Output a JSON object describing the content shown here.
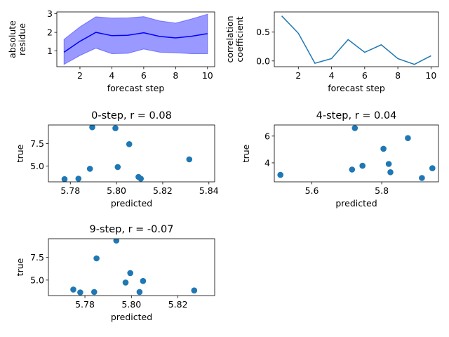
{
  "chart_data": [
    {
      "id": "residue",
      "type": "line",
      "xlabel": "forecast step",
      "ylabel": [
        "absolute",
        "residue"
      ],
      "xlim": [
        0.55,
        10.45
      ],
      "ylim": [
        0.15,
        3.1
      ],
      "xticks": [
        2,
        4,
        6,
        8,
        10
      ],
      "yticks": [
        1,
        2,
        3
      ],
      "x": [
        1,
        2,
        3,
        4,
        5,
        6,
        7,
        8,
        9,
        10
      ],
      "series": [
        {
          "values": [
            0.93,
            1.52,
            2.0,
            1.82,
            1.84,
            1.98,
            1.78,
            1.7,
            1.79,
            1.93
          ],
          "lower": [
            0.27,
            0.75,
            1.15,
            0.85,
            0.87,
            1.1,
            0.93,
            0.9,
            0.85,
            0.85
          ],
          "upper": [
            1.62,
            2.3,
            2.84,
            2.77,
            2.78,
            2.85,
            2.62,
            2.5,
            2.72,
            2.98
          ],
          "color": "#0000ff"
        }
      ]
    },
    {
      "id": "corr",
      "type": "line",
      "xlabel": "forecast step",
      "ylabel": [
        "correlation",
        "coefficient"
      ],
      "xlim": [
        0.55,
        10.45
      ],
      "ylim": [
        -0.1,
        0.85
      ],
      "xticks": [
        2,
        4,
        6,
        8,
        10
      ],
      "yticks": [
        0.0,
        0.5
      ],
      "ytickFormat": 1,
      "x": [
        1,
        2,
        3,
        4,
        5,
        6,
        7,
        8,
        9,
        10
      ],
      "series": [
        {
          "values": [
            0.78,
            0.48,
            -0.04,
            0.04,
            0.37,
            0.15,
            0.28,
            0.04,
            -0.06,
            0.09
          ],
          "color": "#1f77b4"
        }
      ]
    },
    {
      "id": "s0",
      "type": "scatter",
      "title": "0-step, r = 0.08",
      "xlabel": "predicted",
      "ylabel": "true",
      "xlim": [
        5.7705,
        5.8425
      ],
      "ylim": [
        3.25,
        9.58
      ],
      "xticks": [
        5.78,
        5.8,
        5.82,
        5.84
      ],
      "xtickFormat": 2,
      "yticks": [
        5.0,
        7.5
      ],
      "ytickFormat": 1,
      "color": "#1f77b4",
      "points": [
        [
          5.7895,
          9.33
        ],
        [
          5.7995,
          9.22
        ],
        [
          5.8055,
          7.45
        ],
        [
          5.7775,
          3.55
        ],
        [
          5.7835,
          3.6
        ],
        [
          5.7885,
          4.7
        ],
        [
          5.8005,
          4.9
        ],
        [
          5.8095,
          3.8
        ],
        [
          5.8105,
          3.6
        ],
        [
          5.8315,
          5.75
        ]
      ]
    },
    {
      "id": "s4",
      "type": "scatter",
      "title": "4-step, r = 0.04",
      "xlabel": "predicted",
      "ylabel": "true",
      "xlim": [
        5.4925,
        5.9625
      ],
      "ylim": [
        2.58,
        6.83
      ],
      "xticks": [
        5.6,
        5.8
      ],
      "xtickFormat": 1,
      "yticks": [
        4,
        6
      ],
      "ytickFormat": 0,
      "color": "#1f77b4",
      "points": [
        [
          5.723,
          6.6
        ],
        [
          5.51,
          3.1
        ],
        [
          5.715,
          3.5
        ],
        [
          5.745,
          3.78
        ],
        [
          5.805,
          5.05
        ],
        [
          5.82,
          3.92
        ],
        [
          5.825,
          3.3
        ],
        [
          5.875,
          5.85
        ],
        [
          5.915,
          2.87
        ],
        [
          5.945,
          3.6
        ]
      ]
    },
    {
      "id": "s9",
      "type": "scatter",
      "title": "9-step, r = -0.07",
      "xlabel": "predicted",
      "ylabel": "true",
      "xlim": [
        5.7643,
        5.8358
      ],
      "ylim": [
        3.28,
        9.58
      ],
      "xticks": [
        5.78,
        5.8,
        5.82
      ],
      "xtickFormat": 2,
      "yticks": [
        5.0,
        7.5
      ],
      "ytickFormat": 1,
      "color": "#1f77b4",
      "points": [
        [
          5.7935,
          9.38
        ],
        [
          5.785,
          7.4
        ],
        [
          5.7995,
          5.78
        ],
        [
          5.775,
          3.95
        ],
        [
          5.778,
          3.63
        ],
        [
          5.784,
          3.68
        ],
        [
          5.7975,
          4.73
        ],
        [
          5.805,
          4.9
        ],
        [
          5.8035,
          3.68
        ],
        [
          5.827,
          3.85
        ]
      ]
    }
  ]
}
